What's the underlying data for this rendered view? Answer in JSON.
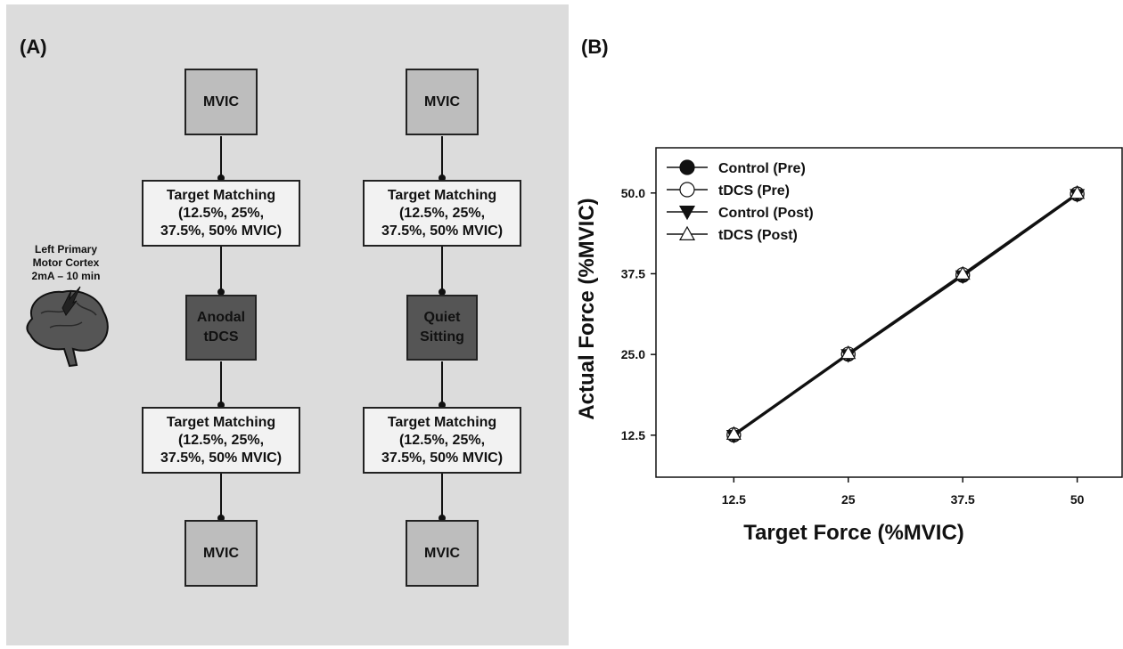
{
  "panel_a": {
    "label": "(A)",
    "brain_label": "Left Primary\nMotor Cortex\n2mA – 10 min",
    "columns": [
      {
        "top": "MVIC",
        "pre_target": "Target Matching\n(12.5%, 25%,\n37.5%, 50% MVIC)",
        "intervention": "Anodal\ntDCS",
        "post_target": "Target Matching\n(12.5%, 25%,\n37.5%, 50% MVIC)",
        "bottom": "MVIC"
      },
      {
        "top": "MVIC",
        "pre_target": "Target Matching\n(12.5%, 25%,\n37.5%, 50% MVIC)",
        "intervention": "Quiet\nSitting",
        "post_target": "Target Matching\n(12.5%, 25%,\n37.5%, 50% MVIC)",
        "bottom": "MVIC"
      }
    ],
    "colors": {
      "panel_bg": "#dcdcdc",
      "mvic_box": "#bdbdbd",
      "target_box": "#f2f2f2",
      "intervention_box": "#555555"
    }
  },
  "panel_b": {
    "label": "(B)"
  },
  "chart_data": {
    "type": "line",
    "x": [
      12.5,
      25,
      37.5,
      50
    ],
    "x_tick_labels": [
      "12.5",
      "25",
      "37.5",
      "50"
    ],
    "y_tick_labels": [
      "12.5",
      "25.0",
      "37.5",
      "50.0"
    ],
    "y_ticks": [
      12.5,
      25.0,
      37.5,
      50.0
    ],
    "xlabel": "Target Force (%MVIC)",
    "ylabel": "Actual Force (%MVIC)",
    "xlim": [
      4,
      55
    ],
    "ylim": [
      6,
      57
    ],
    "legend_position": "top-left",
    "series": [
      {
        "name": "Control (Pre)",
        "marker": "filled-circle",
        "values": [
          12.5,
          25.0,
          37.2,
          49.8
        ]
      },
      {
        "name": "tDCS (Pre)",
        "marker": "open-circle",
        "values": [
          12.6,
          25.1,
          37.4,
          49.9
        ]
      },
      {
        "name": "Control (Post)",
        "marker": "filled-triangle-down",
        "values": [
          12.4,
          24.9,
          37.1,
          49.7
        ]
      },
      {
        "name": "tDCS (Post)",
        "marker": "open-triangle-up",
        "values": [
          12.7,
          25.2,
          37.5,
          50.0
        ]
      }
    ],
    "grid": false
  }
}
